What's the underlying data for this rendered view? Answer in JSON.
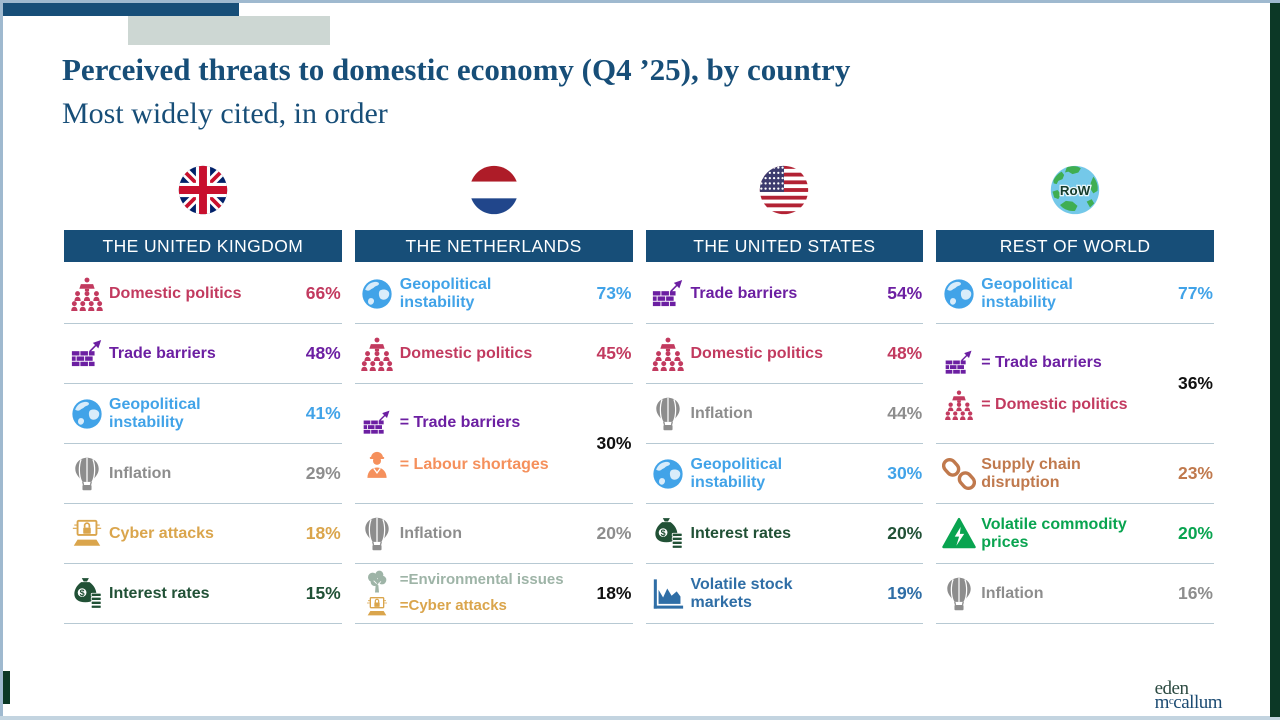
{
  "slide": {
    "title": "Perceived threats to domestic economy (Q4 ’25), by country",
    "subtitle": "Most widely cited, in order"
  },
  "logo": {
    "line1": "eden",
    "line2_prefix": "m",
    "line2_sup": "c",
    "line2_rest": "callum"
  },
  "colors": {
    "theme": {
      "navy": "#174e78",
      "sep": "#b7c9d3",
      "borderlight": "#9fb9cf",
      "borderbottom": "#c3d4e0",
      "greenbar": "#0c3826",
      "grayblock": "#cdd7d3",
      "black": "#111111",
      "logo1": "#2d4b42",
      "logo2": "#1c4b72"
    },
    "flags": {
      "uk_navy": "#012169",
      "uk_red": "#C8102E",
      "nl_red": "#AE1C28",
      "nl_blue": "#21468B",
      "us_red": "#B22234",
      "us_navy": "#3C3B6E",
      "globe_sea": "#74c8e9",
      "globe_land": "#3fae52",
      "globe_text": "#153c2c"
    }
  },
  "columns": [
    {
      "id": "uk",
      "name": "THE UNITED KINGDOM",
      "flag": "uk-flag",
      "flag_label": "",
      "items": [
        {
          "entries": [
            {
              "icon": "domestic-politics-icon",
              "label": "Domestic politics",
              "color": "#c23a5f"
            }
          ],
          "value": "66%",
          "value_color": "#c23a5f"
        },
        {
          "entries": [
            {
              "icon": "trade-barriers-icon",
              "label": "Trade barriers",
              "color": "#6c1fa2"
            }
          ],
          "value": "48%",
          "value_color": "#6c1fa2"
        },
        {
          "entries": [
            {
              "icon": "geopolitical-instability-icon",
              "label": "Geopolitical instability",
              "color": "#41a3e8"
            }
          ],
          "value": "41%",
          "value_color": "#41a3e8"
        },
        {
          "entries": [
            {
              "icon": "inflation-icon",
              "label": "Inflation",
              "color": "#8d8d8d"
            }
          ],
          "value": "29%",
          "value_color": "#8d8d8d"
        },
        {
          "entries": [
            {
              "icon": "cyber-attacks-icon",
              "label": "Cyber attacks",
              "color": "#daa54c"
            }
          ],
          "value": "18%",
          "value_color": "#daa54c"
        },
        {
          "entries": [
            {
              "icon": "interest-rates-icon",
              "label": "Interest rates",
              "color": "#215136"
            }
          ],
          "value": "15%",
          "value_color": "#215136"
        }
      ]
    },
    {
      "id": "netherlands",
      "name": "THE NETHERLANDS",
      "flag": "netherlands-flag",
      "flag_label": "",
      "items": [
        {
          "entries": [
            {
              "icon": "geopolitical-instability-icon",
              "label": "Geopolitical instability",
              "color": "#41a3e8"
            }
          ],
          "value": "73%",
          "value_color": "#41a3e8"
        },
        {
          "entries": [
            {
              "icon": "domestic-politics-icon",
              "label": "Domestic politics",
              "color": "#c23a5f"
            }
          ],
          "value": "45%",
          "value_color": "#c23a5f"
        },
        {
          "tall": true,
          "entries": [
            {
              "icon": "trade-barriers-icon",
              "label": "= Trade barriers",
              "color": "#6c1fa2"
            },
            {
              "icon": "labour-shortages-icon",
              "label": "= Labour shortages",
              "color": "#f5905c"
            }
          ],
          "value": "30%",
          "value_color": "#111111"
        },
        {
          "entries": [
            {
              "icon": "inflation-icon",
              "label": "Inflation",
              "color": "#8d8d8d"
            }
          ],
          "value": "20%",
          "value_color": "#8d8d8d"
        },
        {
          "compact": true,
          "entries": [
            {
              "icon": "environmental-issues-icon",
              "label": "=Environmental issues",
              "color": "#9eb4a7"
            },
            {
              "icon": "cyber-attacks-icon",
              "label": "=Cyber attacks",
              "color": "#daa54c"
            }
          ],
          "value": "18%",
          "value_color": "#111111"
        }
      ]
    },
    {
      "id": "us",
      "name": "THE UNITED STATES",
      "flag": "us-flag",
      "flag_label": "",
      "items": [
        {
          "entries": [
            {
              "icon": "trade-barriers-icon",
              "label": "Trade barriers",
              "color": "#6c1fa2"
            }
          ],
          "value": "54%",
          "value_color": "#6c1fa2"
        },
        {
          "entries": [
            {
              "icon": "domestic-politics-icon",
              "label": "Domestic politics",
              "color": "#c23a5f"
            }
          ],
          "value": "48%",
          "value_color": "#c23a5f"
        },
        {
          "entries": [
            {
              "icon": "inflation-icon",
              "label": "Inflation",
              "color": "#8d8d8d"
            }
          ],
          "value": "44%",
          "value_color": "#8d8d8d"
        },
        {
          "entries": [
            {
              "icon": "geopolitical-instability-icon",
              "label": "Geopolitical instability",
              "color": "#41a3e8"
            }
          ],
          "value": "30%",
          "value_color": "#41a3e8"
        },
        {
          "entries": [
            {
              "icon": "interest-rates-icon",
              "label": "Interest rates",
              "color": "#215136"
            }
          ],
          "value": "20%",
          "value_color": "#215136"
        },
        {
          "entries": [
            {
              "icon": "volatile-stock-markets-icon",
              "label": "Volatile stock markets",
              "color": "#2f6ea6"
            }
          ],
          "value": "19%",
          "value_color": "#2f6ea6"
        }
      ]
    },
    {
      "id": "row",
      "name": "REST OF WORLD",
      "flag": "row-globe",
      "flag_label": "RoW",
      "items": [
        {
          "entries": [
            {
              "icon": "geopolitical-instability-icon",
              "label": "Geopolitical instability",
              "color": "#41a3e8"
            }
          ],
          "value": "77%",
          "value_color": "#41a3e8"
        },
        {
          "tall": true,
          "entries": [
            {
              "icon": "trade-barriers-icon",
              "label": "= Trade barriers",
              "color": "#6c1fa2"
            },
            {
              "icon": "domestic-politics-icon",
              "label": "= Domestic politics",
              "color": "#c23a5f"
            }
          ],
          "value": "36%",
          "value_color": "#111111"
        },
        {
          "entries": [
            {
              "icon": "supply-chain-disruption-icon",
              "label": "Supply chain disruption",
              "color": "#c0794d"
            }
          ],
          "value": "23%",
          "value_color": "#c0794d"
        },
        {
          "entries": [
            {
              "icon": "volatile-commodity-prices-icon",
              "label": "Volatile commodity prices",
              "color": "#09a450"
            }
          ],
          "value": "20%",
          "value_color": "#09a450"
        },
        {
          "entries": [
            {
              "icon": "inflation-icon",
              "label": "Inflation",
              "color": "#8d8d8d"
            }
          ],
          "value": "16%",
          "value_color": "#8d8d8d"
        }
      ]
    }
  ],
  "chart_data": {
    "type": "table",
    "title": "Perceived threats to domestic economy (Q4 ’25), by country",
    "subtitle": "Most widely cited, in order",
    "unit": "%",
    "groups": [
      {
        "country": "The United Kingdom",
        "threats": [
          [
            "Domestic politics",
            66
          ],
          [
            "Trade barriers",
            48
          ],
          [
            "Geopolitical instability",
            41
          ],
          [
            "Inflation",
            29
          ],
          [
            "Cyber attacks",
            18
          ],
          [
            "Interest rates",
            15
          ]
        ]
      },
      {
        "country": "The Netherlands",
        "threats": [
          [
            "Geopolitical instability",
            73
          ],
          [
            "Domestic politics",
            45
          ],
          [
            "Trade barriers",
            30
          ],
          [
            "Labour shortages",
            30
          ],
          [
            "Inflation",
            20
          ],
          [
            "Environmental issues",
            18
          ],
          [
            "Cyber attacks",
            18
          ]
        ]
      },
      {
        "country": "The United States",
        "threats": [
          [
            "Trade barriers",
            54
          ],
          [
            "Domestic politics",
            48
          ],
          [
            "Inflation",
            44
          ],
          [
            "Geopolitical instability",
            30
          ],
          [
            "Interest rates",
            20
          ],
          [
            "Volatile stock markets",
            19
          ]
        ]
      },
      {
        "country": "Rest of World",
        "threats": [
          [
            "Geopolitical instability",
            77
          ],
          [
            "Trade barriers",
            36
          ],
          [
            "Domestic politics",
            36
          ],
          [
            "Supply chain disruption",
            23
          ],
          [
            "Volatile commodity prices",
            20
          ],
          [
            "Inflation",
            16
          ]
        ]
      }
    ]
  }
}
